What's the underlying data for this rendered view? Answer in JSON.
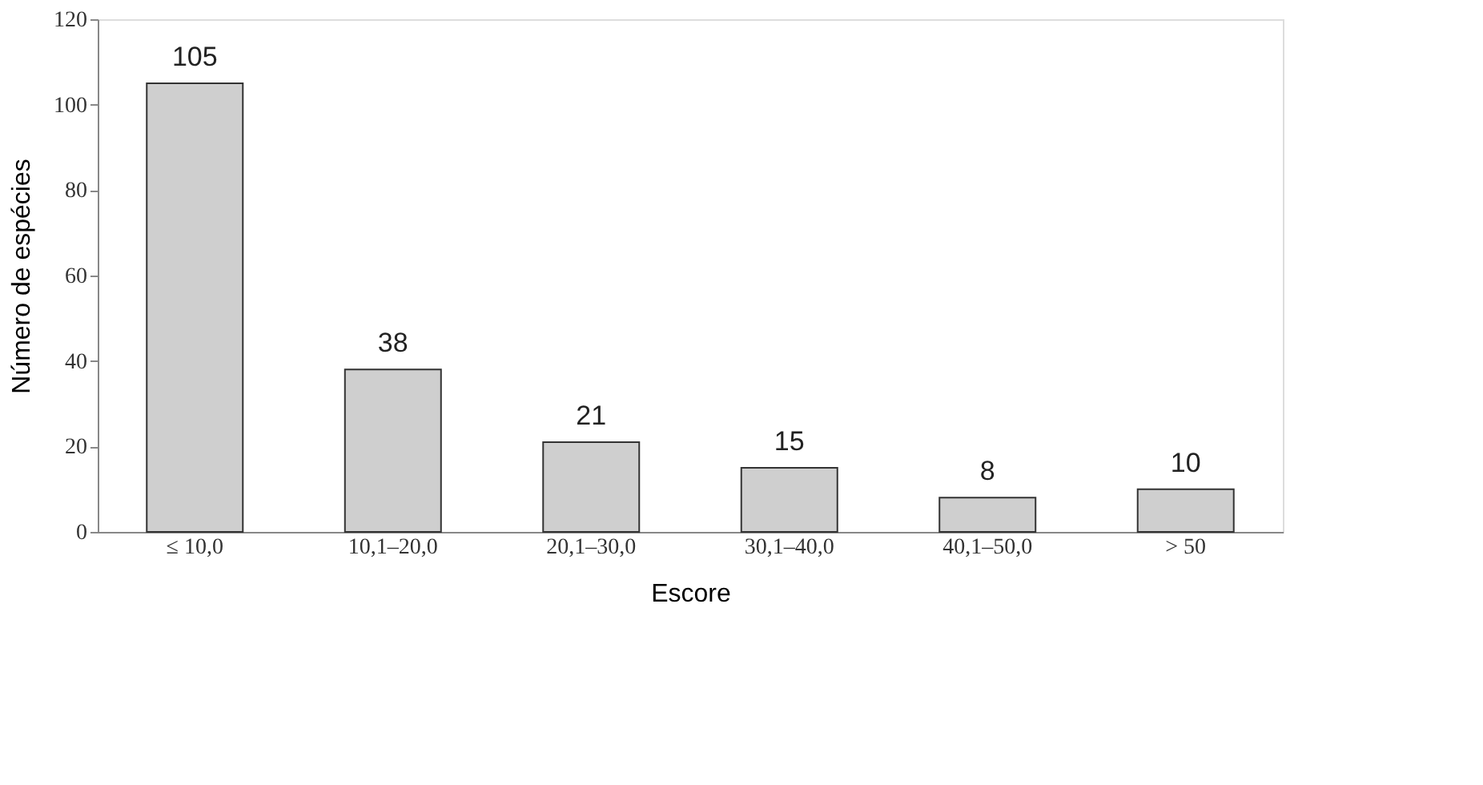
{
  "chart_data": {
    "type": "bar",
    "xlabel": "Escore",
    "ylabel": "Número de espécies",
    "categories": [
      "≤ 10,0",
      "10,1–20,0",
      "20,1–30,0",
      "30,1–40,0",
      "40,1–50,0",
      "> 50"
    ],
    "values": [
      105,
      38,
      21,
      15,
      8,
      10
    ],
    "color": "#cfcfcf",
    "ylim": [
      0,
      120
    ],
    "yticks": [
      0,
      20,
      40,
      60,
      80,
      100,
      120
    ],
    "grid": false,
    "data_labels": true
  }
}
